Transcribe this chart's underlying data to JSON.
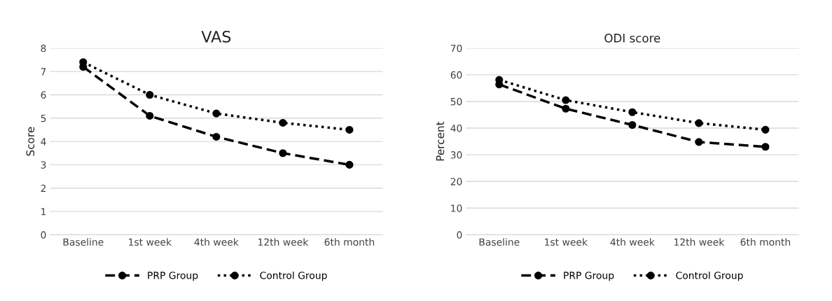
{
  "chart_data": [
    {
      "type": "line",
      "title": "VAS",
      "ylabel": "Score",
      "categories": [
        "Baseline",
        "1st week",
        "4th week",
        "12th week",
        "6th month"
      ],
      "series": [
        {
          "name": "PRP Group",
          "color": "#000000",
          "line_style": "dashed",
          "values": [
            7.2,
            5.1,
            4.2,
            3.5,
            3.0
          ]
        },
        {
          "name": "Control Group",
          "color": "#000000",
          "line_style": "dotted",
          "values": [
            7.4,
            6.0,
            5.2,
            4.8,
            4.5
          ]
        }
      ],
      "ylim": [
        0,
        8
      ],
      "yticks": [
        0,
        1,
        2,
        3,
        4,
        5,
        6,
        7,
        8
      ],
      "grid": "y",
      "legend": "bottom",
      "marker": "circle"
    },
    {
      "type": "line",
      "title": "ODI score",
      "ylabel": "Percent",
      "categories": [
        "Baseline",
        "1st week",
        "4th week",
        "12th week",
        "6th month"
      ],
      "series": [
        {
          "name": "PRP Group",
          "color": "#000000",
          "line_style": "dashed",
          "values": [
            56.4,
            47.3,
            41.2,
            34.8,
            33.0
          ]
        },
        {
          "name": "Control Group",
          "color": "#000000",
          "line_style": "dotted",
          "values": [
            58.1,
            50.5,
            46.0,
            41.9,
            39.4
          ]
        }
      ],
      "ylim": [
        0,
        70
      ],
      "yticks": [
        0,
        10,
        20,
        30,
        40,
        50,
        60,
        70
      ],
      "grid": "y",
      "legend": "bottom",
      "marker": "circle"
    }
  ]
}
